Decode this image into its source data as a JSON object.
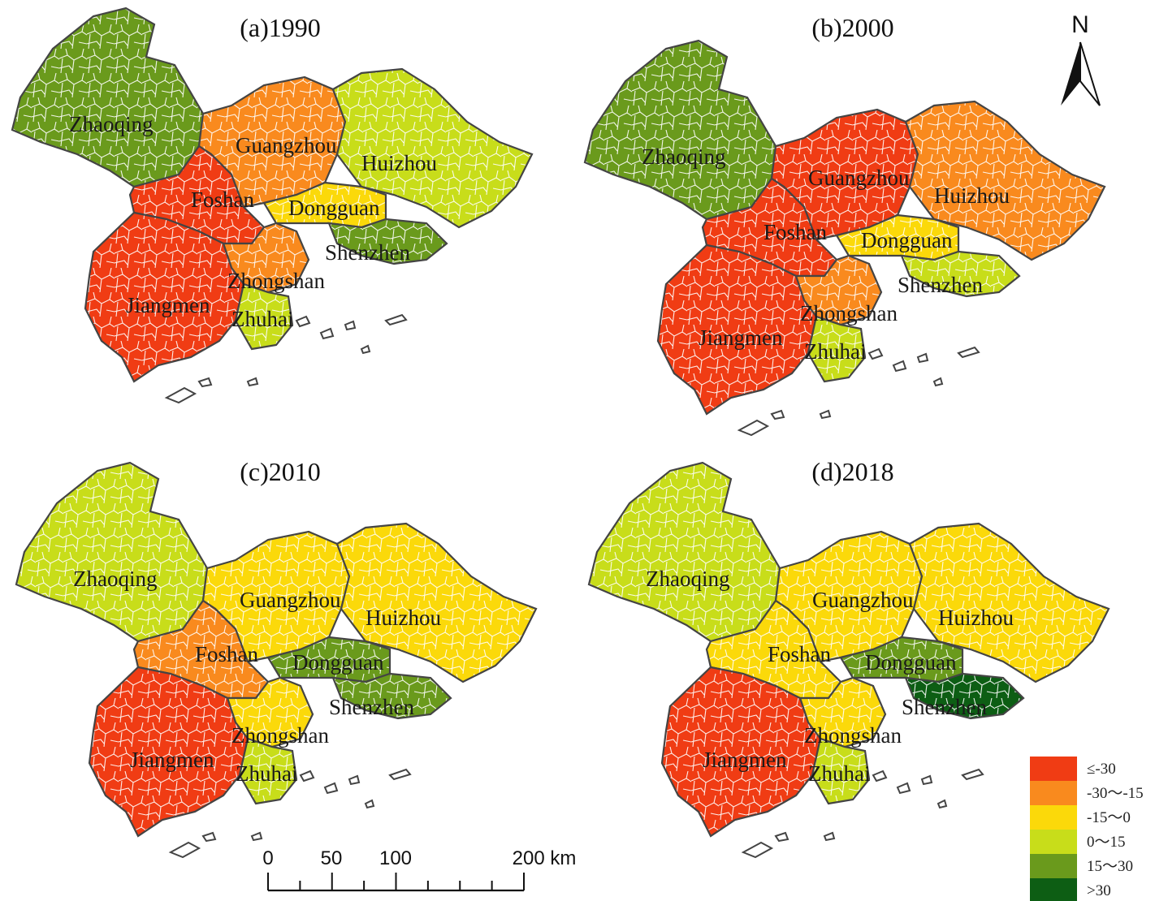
{
  "panels": [
    {
      "title": "(a)1990",
      "cities": [
        {
          "name": "Zhaoqing",
          "class": 4
        },
        {
          "name": "Guangzhou",
          "class": 1
        },
        {
          "name": "Huizhou",
          "class": 3
        },
        {
          "name": "Foshan",
          "class": 0
        },
        {
          "name": "Dongguan",
          "class": 2
        },
        {
          "name": "Shenzhen",
          "class": 4
        },
        {
          "name": "Zhongshan",
          "class": 1
        },
        {
          "name": "Jiangmen",
          "class": 0
        },
        {
          "name": "Zhuhai",
          "class": 3
        }
      ]
    },
    {
      "title": "(b)2000",
      "cities": [
        {
          "name": "Zhaoqing",
          "class": 4
        },
        {
          "name": "Guangzhou",
          "class": 0
        },
        {
          "name": "Huizhou",
          "class": 1
        },
        {
          "name": "Foshan",
          "class": 0
        },
        {
          "name": "Dongguan",
          "class": 2
        },
        {
          "name": "Shenzhen",
          "class": 3
        },
        {
          "name": "Zhongshan",
          "class": 1
        },
        {
          "name": "Jiangmen",
          "class": 0
        },
        {
          "name": "Zhuhai",
          "class": 3
        }
      ]
    },
    {
      "title": "(c)2010",
      "cities": [
        {
          "name": "Zhaoqing",
          "class": 3
        },
        {
          "name": "Guangzhou",
          "class": 2
        },
        {
          "name": "Huizhou",
          "class": 2
        },
        {
          "name": "Foshan",
          "class": 1
        },
        {
          "name": "Dongguan",
          "class": 4
        },
        {
          "name": "Shenzhen",
          "class": 4
        },
        {
          "name": "Zhongshan",
          "class": 2
        },
        {
          "name": "Jiangmen",
          "class": 0
        },
        {
          "name": "Zhuhai",
          "class": 3
        }
      ]
    },
    {
      "title": "(d)2018",
      "cities": [
        {
          "name": "Zhaoqing",
          "class": 3
        },
        {
          "name": "Guangzhou",
          "class": 2
        },
        {
          "name": "Huizhou",
          "class": 2
        },
        {
          "name": "Foshan",
          "class": 2
        },
        {
          "name": "Dongguan",
          "class": 4
        },
        {
          "name": "Shenzhen",
          "class": 5
        },
        {
          "name": "Zhongshan",
          "class": 2
        },
        {
          "name": "Jiangmen",
          "class": 0
        },
        {
          "name": "Zhuhai",
          "class": 3
        }
      ]
    }
  ],
  "legend": {
    "classes": [
      {
        "label": "≤-30",
        "color": "#f03c14"
      },
      {
        "label": "-30～-15",
        "color": "#f98a1e"
      },
      {
        "label": "-15～0",
        "color": "#fbd90a"
      },
      {
        "label": "0～15",
        "color": "#c8dd1a"
      },
      {
        "label": "15～30",
        "color": "#6a9a1c"
      },
      {
        "label": ">30",
        "color": "#0d5e14"
      }
    ]
  },
  "north_arrow": {
    "label": "N",
    "icon": "north-arrow-icon"
  },
  "scale_bar": {
    "ticks": [
      "0",
      "50",
      "100",
      "200 km"
    ]
  },
  "colors": {
    "city_border": "#444444",
    "town_border": "#ffffff",
    "island": "#444444"
  }
}
